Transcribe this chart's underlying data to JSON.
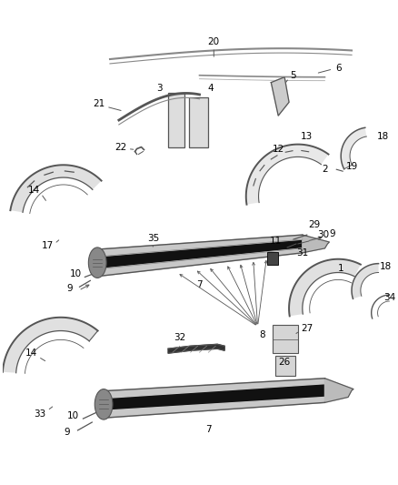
{
  "background_color": "#ffffff",
  "line_color": "#555555",
  "dark_color": "#111111",
  "label_fontsize": 7.5,
  "fig_w": 4.38,
  "fig_h": 5.33,
  "dpi": 100
}
